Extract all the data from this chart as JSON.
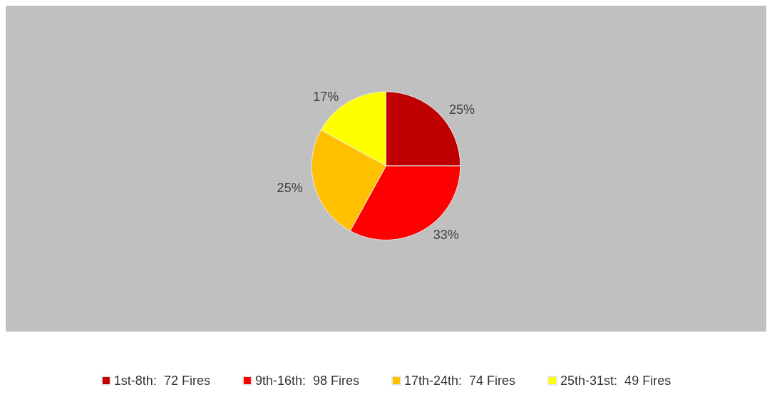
{
  "chart_data": {
    "type": "pie",
    "categories": [
      "1st-8th:  72 Fires",
      "9th-16th:  98 Fires",
      "17th-24th:  74 Fires",
      "25th-31st:  49 Fires"
    ],
    "values": [
      25,
      33,
      25,
      17
    ],
    "value_labels": [
      "25%",
      "33%",
      "25%",
      "17%"
    ],
    "colors": [
      "#c00000",
      "#ff0000",
      "#ffc000",
      "#ffff00"
    ],
    "legend": "bottom"
  }
}
